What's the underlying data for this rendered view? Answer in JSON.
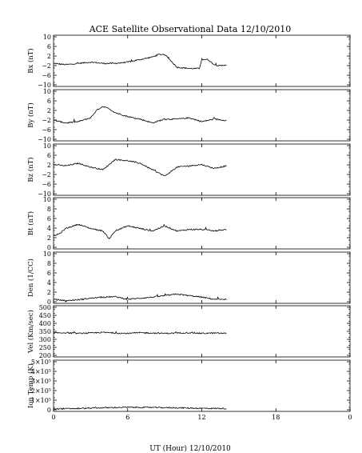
{
  "chart_data": {
    "type": "line",
    "title": "ACE Satellite Observational Data   12/10/2010",
    "xlabel": "UT (Hour)   12/10/2010",
    "xticks": [
      "0",
      "6",
      "12",
      "18",
      "0"
    ],
    "xlim": [
      0,
      24
    ],
    "data_end_hour": 14,
    "panels": [
      {
        "ylabel": "Bx (nT)",
        "ylim": [
          -10,
          10
        ],
        "yticks": [
          "10",
          "6",
          "2",
          "−2",
          "−6",
          "−10"
        ],
        "x": [
          0,
          1,
          2,
          3,
          4,
          5,
          6,
          7,
          8,
          8.5,
          9,
          9.5,
          10,
          11,
          11.8,
          12,
          12.5,
          13,
          13.5,
          14
        ],
        "y": [
          -1,
          -1.5,
          -1,
          -0.5,
          -1,
          -1,
          -0.5,
          0.5,
          1.5,
          2.5,
          2.5,
          0,
          -2.5,
          -3,
          -3,
          0.5,
          0.5,
          -1.5,
          -2,
          -1.5
        ]
      },
      {
        "ylabel": "By (nT)",
        "ylim": [
          -10,
          10
        ],
        "yticks": [
          "10",
          "6",
          "2",
          "−2",
          "−6",
          "−10"
        ],
        "x": [
          0,
          1,
          2,
          3,
          3.5,
          4,
          4.5,
          5,
          6,
          7,
          8,
          9,
          10,
          11,
          12,
          13,
          14
        ],
        "y": [
          -2,
          -3,
          -2.5,
          -1,
          2,
          3.5,
          2.5,
          1,
          -0.5,
          -1.5,
          -3,
          -1.5,
          -1.5,
          -1,
          -2.5,
          -1.5,
          -2
        ]
      },
      {
        "ylabel": "Bz (nT)",
        "ylim": [
          -10,
          10
        ],
        "yticks": [
          "10",
          "6",
          "2",
          "−2",
          "−6",
          "−10"
        ],
        "x": [
          0,
          1,
          2,
          3,
          4,
          5,
          6,
          7,
          8,
          9,
          10,
          11,
          12,
          13,
          14
        ],
        "y": [
          2,
          1.5,
          2.5,
          1,
          0,
          4,
          3.5,
          2.5,
          0,
          -2.5,
          1,
          1.5,
          2,
          0.5,
          1.5
        ]
      },
      {
        "ylabel": "Bt (nT)",
        "ylim": [
          0,
          10
        ],
        "yticks": [
          "10",
          "8",
          "6",
          "4",
          "2",
          "0"
        ],
        "x": [
          0,
          0.5,
          1,
          2,
          3,
          4,
          4.5,
          5,
          6,
          7,
          8,
          9,
          10,
          11,
          12,
          13,
          14
        ],
        "y": [
          2.5,
          3,
          4,
          4.8,
          4,
          3.5,
          2,
          3.5,
          4.5,
          4,
          3.5,
          4.5,
          3.5,
          3.8,
          3.8,
          3.5,
          3.8
        ]
      },
      {
        "ylabel": "Den (1/CC)",
        "ylim": [
          0,
          10
        ],
        "yticks": [
          "10",
          "8",
          "6",
          "4",
          "2",
          "0"
        ],
        "x": [
          0,
          1,
          2,
          3,
          4,
          5,
          6,
          7,
          8,
          9,
          10,
          11,
          12,
          13,
          14
        ],
        "y": [
          0.8,
          0.5,
          0.7,
          1,
          1.2,
          1.3,
          0.8,
          1,
          1.2,
          1.5,
          1.8,
          1.5,
          1.2,
          0.8,
          0.7
        ]
      },
      {
        "ylabel": "Vel (Km/sec)",
        "ylim": [
          200,
          500
        ],
        "yticks": [
          "500",
          "450",
          "400",
          "350",
          "300",
          "250",
          "200"
        ],
        "x": [
          0,
          1,
          2,
          3,
          4,
          5,
          6,
          7,
          8,
          9,
          10,
          11,
          12,
          13,
          14
        ],
        "y": [
          340,
          342,
          338,
          340,
          344,
          340,
          338,
          342,
          340,
          338,
          340,
          342,
          338,
          340,
          338
        ]
      },
      {
        "ylabel": "Ion Temp (K)",
        "ylim": [
          0,
          500000
        ],
        "yticks": [
          "5×10⁵",
          "4×10⁵",
          "3×10⁵",
          "2×10⁵",
          "1×10⁵",
          "0"
        ],
        "x": [
          0,
          2,
          4,
          6,
          8,
          10,
          12,
          14
        ],
        "y": [
          25000,
          28000,
          35000,
          40000,
          38000,
          35000,
          30000,
          28000
        ]
      }
    ]
  }
}
